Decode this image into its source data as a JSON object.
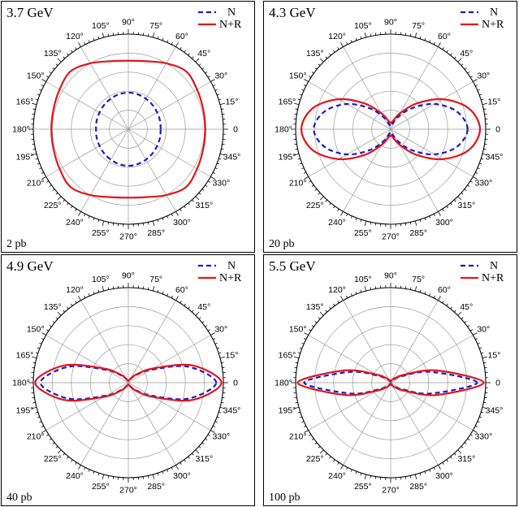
{
  "chart_data": [
    {
      "type": "polar",
      "title": "3.7 GeV",
      "scale_label": "2 pb",
      "angle_ticks_deg": [
        "0",
        "15",
        "30",
        "45",
        "60",
        "75",
        "90",
        "105",
        "120",
        "135",
        "150",
        "165",
        "180",
        "195",
        "210",
        "225",
        "240",
        "255",
        "270",
        "285",
        "300",
        "315",
        "330",
        "345"
      ],
      "rmax": 2,
      "rings": [
        0.4,
        0.8,
        1.2,
        1.6,
        2.0
      ],
      "legend": [
        "N",
        "N+R"
      ],
      "series": [
        {
          "name": "N",
          "style": "dashed",
          "color": "#1a1acc",
          "theta_deg": [
            0,
            15,
            30,
            45,
            60,
            75,
            90,
            105,
            120,
            135,
            150,
            165,
            180,
            195,
            210,
            225,
            240,
            255,
            270,
            285,
            300,
            315,
            330,
            345
          ],
          "r": [
            0.68,
            0.69,
            0.7,
            0.72,
            0.74,
            0.76,
            0.77,
            0.76,
            0.74,
            0.72,
            0.7,
            0.69,
            0.68,
            0.69,
            0.7,
            0.72,
            0.74,
            0.76,
            0.77,
            0.76,
            0.74,
            0.72,
            0.7,
            0.69
          ]
        },
        {
          "name": "N+R",
          "style": "solid",
          "color": "#e0161b",
          "theta_deg": [
            0,
            15,
            30,
            45,
            60,
            75,
            90,
            105,
            120,
            135,
            150,
            165,
            180,
            195,
            210,
            225,
            240,
            255,
            270,
            285,
            300,
            315,
            330,
            345
          ],
          "r": [
            1.62,
            1.63,
            1.67,
            1.72,
            1.6,
            1.48,
            1.44,
            1.48,
            1.6,
            1.72,
            1.67,
            1.63,
            1.62,
            1.63,
            1.67,
            1.72,
            1.6,
            1.48,
            1.44,
            1.48,
            1.6,
            1.72,
            1.67,
            1.63
          ]
        }
      ]
    },
    {
      "type": "polar",
      "title": "4.3 GeV",
      "scale_label": "20 pb",
      "angle_ticks_deg": [
        "0",
        "15",
        "30",
        "45",
        "60",
        "75",
        "90",
        "105",
        "120",
        "135",
        "150",
        "165",
        "180",
        "195",
        "210",
        "225",
        "240",
        "255",
        "270",
        "285",
        "300",
        "315",
        "330",
        "345"
      ],
      "rmax": 20,
      "rings": [
        4,
        8,
        12,
        16,
        20
      ],
      "legend": [
        "N",
        "N+R"
      ],
      "series": [
        {
          "name": "N",
          "style": "dashed",
          "color": "#1a1acc",
          "theta_deg": [
            0,
            15,
            30,
            45,
            60,
            75,
            90,
            105,
            120,
            135,
            150,
            165,
            180,
            195,
            210,
            225,
            240,
            255,
            270,
            285,
            300,
            315,
            330,
            345
          ],
          "r": [
            16.2,
            14.4,
            10.6,
            6.2,
            2.8,
            1.0,
            0.6,
            1.0,
            2.8,
            6.2,
            10.6,
            14.4,
            16.2,
            14.4,
            10.6,
            6.2,
            2.8,
            1.0,
            0.6,
            1.0,
            2.8,
            6.2,
            10.6,
            14.4
          ]
        },
        {
          "name": "N+R",
          "style": "solid",
          "color": "#e0161b",
          "theta_deg": [
            0,
            15,
            30,
            45,
            60,
            75,
            90,
            105,
            120,
            135,
            150,
            165,
            180,
            195,
            210,
            225,
            240,
            255,
            270,
            285,
            300,
            315,
            330,
            345
          ],
          "r": [
            18.8,
            17.0,
            12.6,
            7.6,
            3.8,
            1.8,
            1.3,
            1.8,
            3.8,
            7.6,
            12.6,
            17.0,
            18.8,
            17.0,
            12.6,
            7.6,
            3.8,
            1.8,
            1.3,
            1.8,
            3.8,
            7.6,
            12.6,
            17.0
          ]
        }
      ]
    },
    {
      "type": "polar",
      "title": "4.9 GeV",
      "scale_label": "40 pb",
      "angle_ticks_deg": [
        "0",
        "15",
        "30",
        "45",
        "60",
        "75",
        "90",
        "105",
        "120",
        "135",
        "150",
        "165",
        "180",
        "195",
        "210",
        "225",
        "240",
        "255",
        "270",
        "285",
        "300",
        "315",
        "330",
        "345"
      ],
      "rmax": 40,
      "rings": [
        8,
        16,
        24,
        32,
        40
      ],
      "legend": [
        "N",
        "N+R"
      ],
      "series": [
        {
          "name": "N",
          "style": "dashed",
          "color": "#1a1acc",
          "theta_deg": [
            0,
            15,
            30,
            45,
            60,
            75,
            90,
            105,
            120,
            135,
            150,
            165,
            180,
            195,
            210,
            225,
            240,
            255,
            270,
            285,
            300,
            315,
            330,
            345
          ],
          "r": [
            37.0,
            26.0,
            10.8,
            4.4,
            1.8,
            0.8,
            0.6,
            0.8,
            1.8,
            4.4,
            10.8,
            26.0,
            37.0,
            26.0,
            10.8,
            4.4,
            1.8,
            0.8,
            0.6,
            0.8,
            1.8,
            4.4,
            10.8,
            26.0
          ]
        },
        {
          "name": "N+R",
          "style": "solid",
          "color": "#e0161b",
          "theta_deg": [
            0,
            15,
            30,
            45,
            60,
            75,
            90,
            105,
            120,
            135,
            150,
            165,
            180,
            195,
            210,
            225,
            240,
            255,
            270,
            285,
            300,
            315,
            330,
            345
          ],
          "r": [
            39.2,
            28.0,
            12.0,
            5.0,
            2.2,
            1.0,
            0.8,
            1.0,
            2.2,
            5.0,
            12.0,
            28.0,
            39.2,
            28.0,
            12.0,
            5.0,
            2.2,
            1.0,
            0.8,
            1.0,
            2.2,
            5.0,
            12.0,
            28.0
          ]
        }
      ]
    },
    {
      "type": "polar",
      "title": "5.5 GeV",
      "scale_label": "100 pb",
      "angle_ticks_deg": [
        "0",
        "15",
        "30",
        "45",
        "60",
        "75",
        "90",
        "105",
        "120",
        "135",
        "150",
        "165",
        "180",
        "195",
        "210",
        "225",
        "240",
        "255",
        "270",
        "285",
        "300",
        "315",
        "330",
        "345"
      ],
      "rmax": 100,
      "rings": [
        20,
        40,
        60,
        80,
        100
      ],
      "legend": [
        "N",
        "N+R"
      ],
      "series": [
        {
          "name": "N",
          "style": "dashed",
          "color": "#1a1acc",
          "theta_deg": [
            0,
            15,
            30,
            45,
            60,
            75,
            90,
            105,
            120,
            135,
            150,
            165,
            180,
            195,
            210,
            225,
            240,
            255,
            270,
            285,
            300,
            315,
            330,
            345
          ],
          "r": [
            91.0,
            44.0,
            14.0,
            5.8,
            3.0,
            1.6,
            1.2,
            1.6,
            3.0,
            5.8,
            14.0,
            44.0,
            91.0,
            44.0,
            14.0,
            5.8,
            3.0,
            1.6,
            1.2,
            1.6,
            3.0,
            5.8,
            14.0,
            44.0
          ]
        },
        {
          "name": "N+R",
          "style": "solid",
          "color": "#e0161b",
          "theta_deg": [
            0,
            15,
            30,
            45,
            60,
            75,
            90,
            105,
            120,
            135,
            150,
            165,
            180,
            195,
            210,
            225,
            240,
            255,
            270,
            285,
            300,
            315,
            330,
            345
          ],
          "r": [
            98.0,
            50.0,
            17.0,
            7.2,
            3.8,
            2.2,
            1.8,
            2.2,
            3.8,
            7.2,
            17.0,
            50.0,
            98.0,
            50.0,
            17.0,
            7.2,
            3.8,
            2.2,
            1.8,
            2.2,
            3.8,
            7.2,
            17.0,
            50.0
          ]
        }
      ]
    }
  ]
}
